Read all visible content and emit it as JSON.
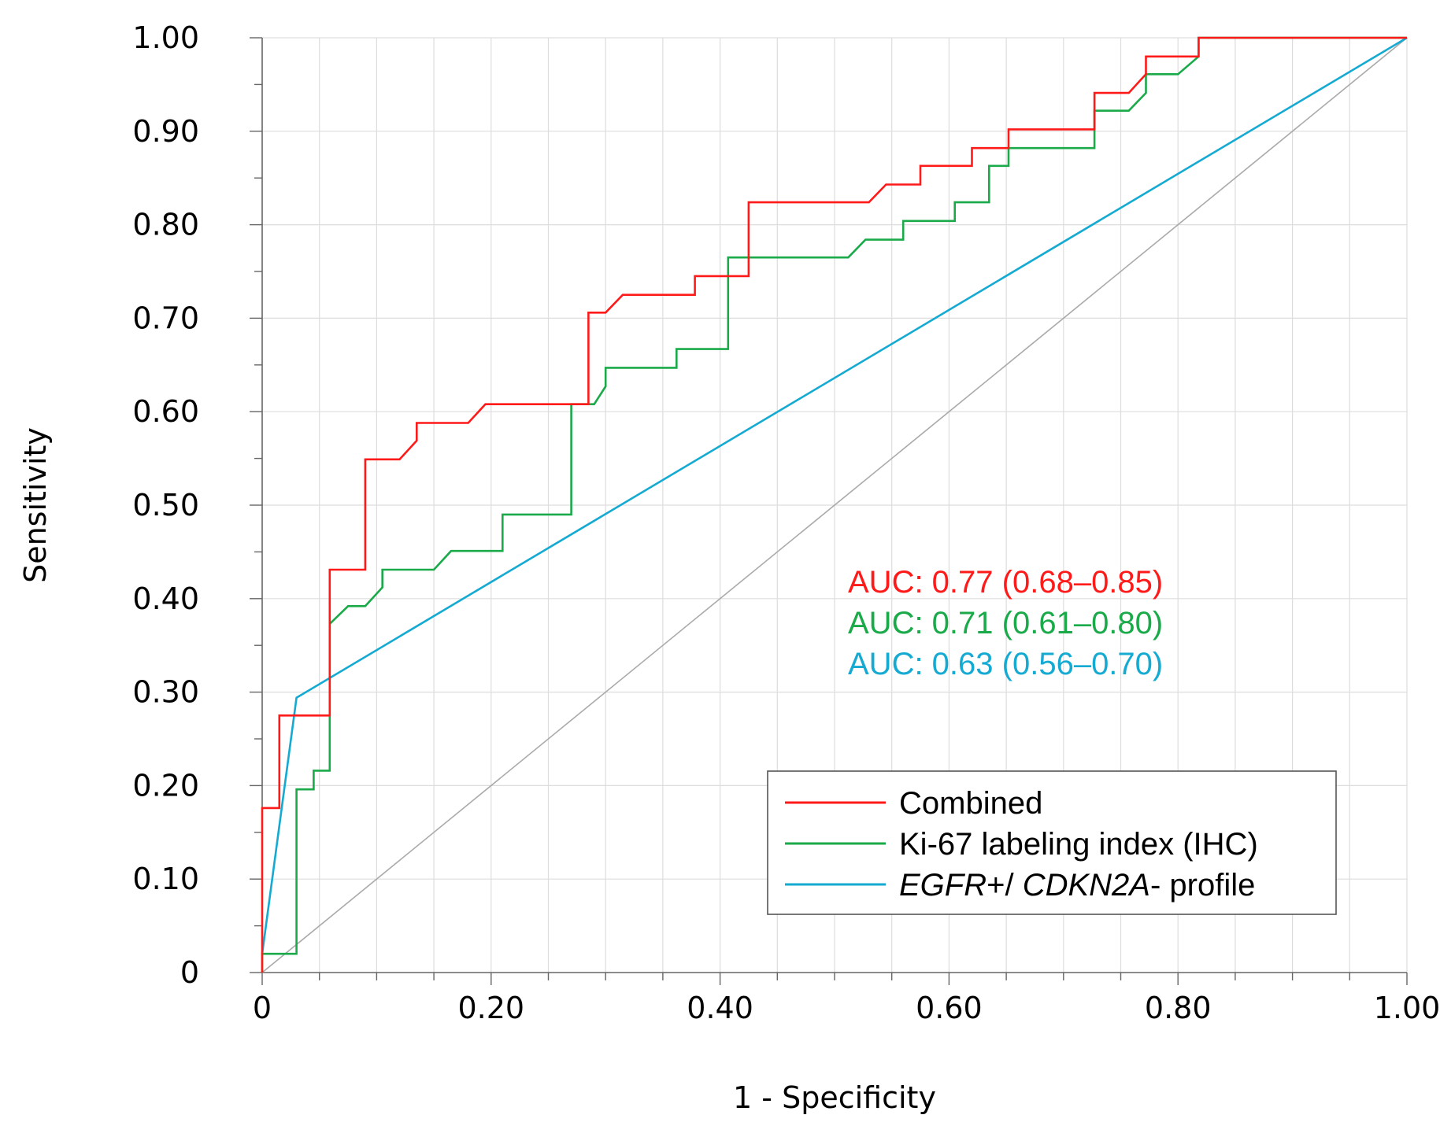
{
  "chart_data": {
    "type": "line",
    "xlabel": "1 - Specificity",
    "ylabel": "Sensitivity",
    "xlim": [
      0,
      1
    ],
    "ylim": [
      0,
      1
    ],
    "grid": true,
    "x_ticks": [
      "0",
      "0.20",
      "0.40",
      "0.60",
      "0.80",
      "1.00"
    ],
    "y_ticks": [
      "0",
      "0.10",
      "0.20",
      "0.30",
      "0.40",
      "0.50",
      "0.60",
      "0.70",
      "0.80",
      "0.90",
      "1.00"
    ],
    "legend_position": "bottom-right",
    "reference_line": {
      "points": [
        [
          0,
          0
        ],
        [
          1,
          1
        ]
      ],
      "color": "#aaaaaa"
    },
    "series": [
      {
        "name": "Combined",
        "color": "#ff1a1a",
        "auc_label": "AUC: 0.77 (0.68–0.85)",
        "points": [
          [
            0,
            0
          ],
          [
            0,
            0.176
          ],
          [
            0.015,
            0.176
          ],
          [
            0.015,
            0.275
          ],
          [
            0.059,
            0.275
          ],
          [
            0.059,
            0.431
          ],
          [
            0.09,
            0.431
          ],
          [
            0.09,
            0.549
          ],
          [
            0.12,
            0.549
          ],
          [
            0.135,
            0.569
          ],
          [
            0.135,
            0.588
          ],
          [
            0.18,
            0.588
          ],
          [
            0.195,
            0.608
          ],
          [
            0.285,
            0.608
          ],
          [
            0.285,
            0.706
          ],
          [
            0.3,
            0.706
          ],
          [
            0.315,
            0.725
          ],
          [
            0.378,
            0.725
          ],
          [
            0.378,
            0.745
          ],
          [
            0.425,
            0.745
          ],
          [
            0.425,
            0.824
          ],
          [
            0.53,
            0.824
          ],
          [
            0.545,
            0.843
          ],
          [
            0.575,
            0.843
          ],
          [
            0.575,
            0.863
          ],
          [
            0.62,
            0.863
          ],
          [
            0.62,
            0.882
          ],
          [
            0.652,
            0.882
          ],
          [
            0.652,
            0.902
          ],
          [
            0.727,
            0.902
          ],
          [
            0.727,
            0.941
          ],
          [
            0.757,
            0.941
          ],
          [
            0.772,
            0.961
          ],
          [
            0.772,
            0.98
          ],
          [
            0.818,
            0.98
          ],
          [
            0.818,
            1.0
          ],
          [
            1,
            1
          ]
        ]
      },
      {
        "name": "Ki-67 labeling index (IHC)",
        "color": "#1aaa4a",
        "auc_label": "AUC: 0.71 (0.61–0.80)",
        "points": [
          [
            0,
            0
          ],
          [
            0,
            0.02
          ],
          [
            0.03,
            0.02
          ],
          [
            0.03,
            0.196
          ],
          [
            0.045,
            0.196
          ],
          [
            0.045,
            0.216
          ],
          [
            0.059,
            0.216
          ],
          [
            0.059,
            0.373
          ],
          [
            0.075,
            0.392
          ],
          [
            0.09,
            0.392
          ],
          [
            0.105,
            0.412
          ],
          [
            0.105,
            0.431
          ],
          [
            0.15,
            0.431
          ],
          [
            0.165,
            0.451
          ],
          [
            0.21,
            0.451
          ],
          [
            0.21,
            0.49
          ],
          [
            0.27,
            0.49
          ],
          [
            0.27,
            0.608
          ],
          [
            0.29,
            0.608
          ],
          [
            0.3,
            0.627
          ],
          [
            0.3,
            0.647
          ],
          [
            0.362,
            0.647
          ],
          [
            0.362,
            0.667
          ],
          [
            0.407,
            0.667
          ],
          [
            0.407,
            0.765
          ],
          [
            0.512,
            0.765
          ],
          [
            0.527,
            0.784
          ],
          [
            0.56,
            0.784
          ],
          [
            0.56,
            0.804
          ],
          [
            0.605,
            0.804
          ],
          [
            0.605,
            0.824
          ],
          [
            0.635,
            0.824
          ],
          [
            0.635,
            0.863
          ],
          [
            0.652,
            0.863
          ],
          [
            0.652,
            0.882
          ],
          [
            0.727,
            0.882
          ],
          [
            0.727,
            0.922
          ],
          [
            0.757,
            0.922
          ],
          [
            0.772,
            0.941
          ],
          [
            0.772,
            0.961
          ],
          [
            0.8,
            0.961
          ],
          [
            0.818,
            0.98
          ],
          [
            0.818,
            1.0
          ],
          [
            1,
            1
          ]
        ]
      },
      {
        "name": "EGFR+/ CDKN2A- profile",
        "name_parts": [
          {
            "text": "EGFR",
            "italic": true
          },
          {
            "text": "+/ ",
            "italic": false
          },
          {
            "text": "CDKN2A",
            "italic": true
          },
          {
            "text": "- profile",
            "italic": false
          }
        ],
        "color": "#14aad2",
        "auc_label": "AUC: 0.63 (0.56–0.70)",
        "points": [
          [
            0,
            0.02
          ],
          [
            0.03,
            0.294
          ],
          [
            1,
            1
          ]
        ]
      }
    ]
  }
}
